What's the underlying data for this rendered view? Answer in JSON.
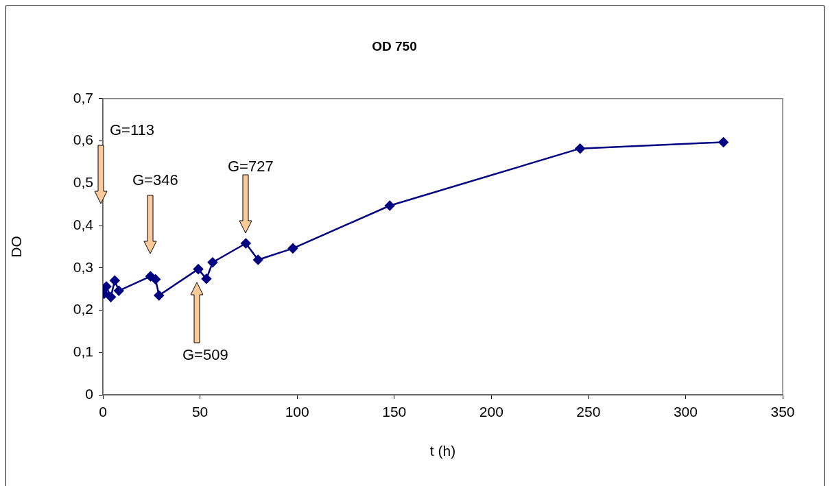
{
  "chart_data": {
    "type": "line",
    "title": "OD 750",
    "xlabel": "t (h)",
    "ylabel": "DO",
    "x": [
      0,
      0.6,
      1.8,
      4.1,
      6.1,
      8.2,
      24.5,
      27.1,
      28.9,
      49.1,
      53.3,
      56.5,
      73.6,
      79.9,
      97.8,
      147.7,
      245.7,
      319.5
    ],
    "series": [
      {
        "color": "#000080",
        "values": [
          0.249,
          0.239,
          0.256,
          0.231,
          0.27,
          0.246,
          0.28,
          0.273,
          0.235,
          0.297,
          0.274,
          0.313,
          0.358,
          0.319,
          0.346,
          0.447,
          0.582,
          0.597
        ]
      }
    ],
    "xlim": [
      0,
      350
    ],
    "xticks": [
      0,
      50,
      100,
      150,
      200,
      250,
      300,
      350
    ],
    "ylim": [
      0,
      0.7
    ],
    "yticks": [
      0,
      {
        "value": 0.1,
        "label": "0,1"
      },
      {
        "value": 0.2,
        "label": "0,2"
      },
      {
        "value": 0.3,
        "label": "0,3"
      },
      {
        "value": 0.4,
        "label": "0,4"
      },
      {
        "value": 0.5,
        "label": "0,5"
      },
      {
        "value": 0.6,
        "label": "0,6"
      },
      {
        "value": 0.7,
        "label": "0,7"
      }
    ],
    "annotations": [
      "G=113",
      "G=346",
      "G=509",
      "G=727"
    ],
    "marker": "diamond",
    "grid": false,
    "legend": false
  }
}
